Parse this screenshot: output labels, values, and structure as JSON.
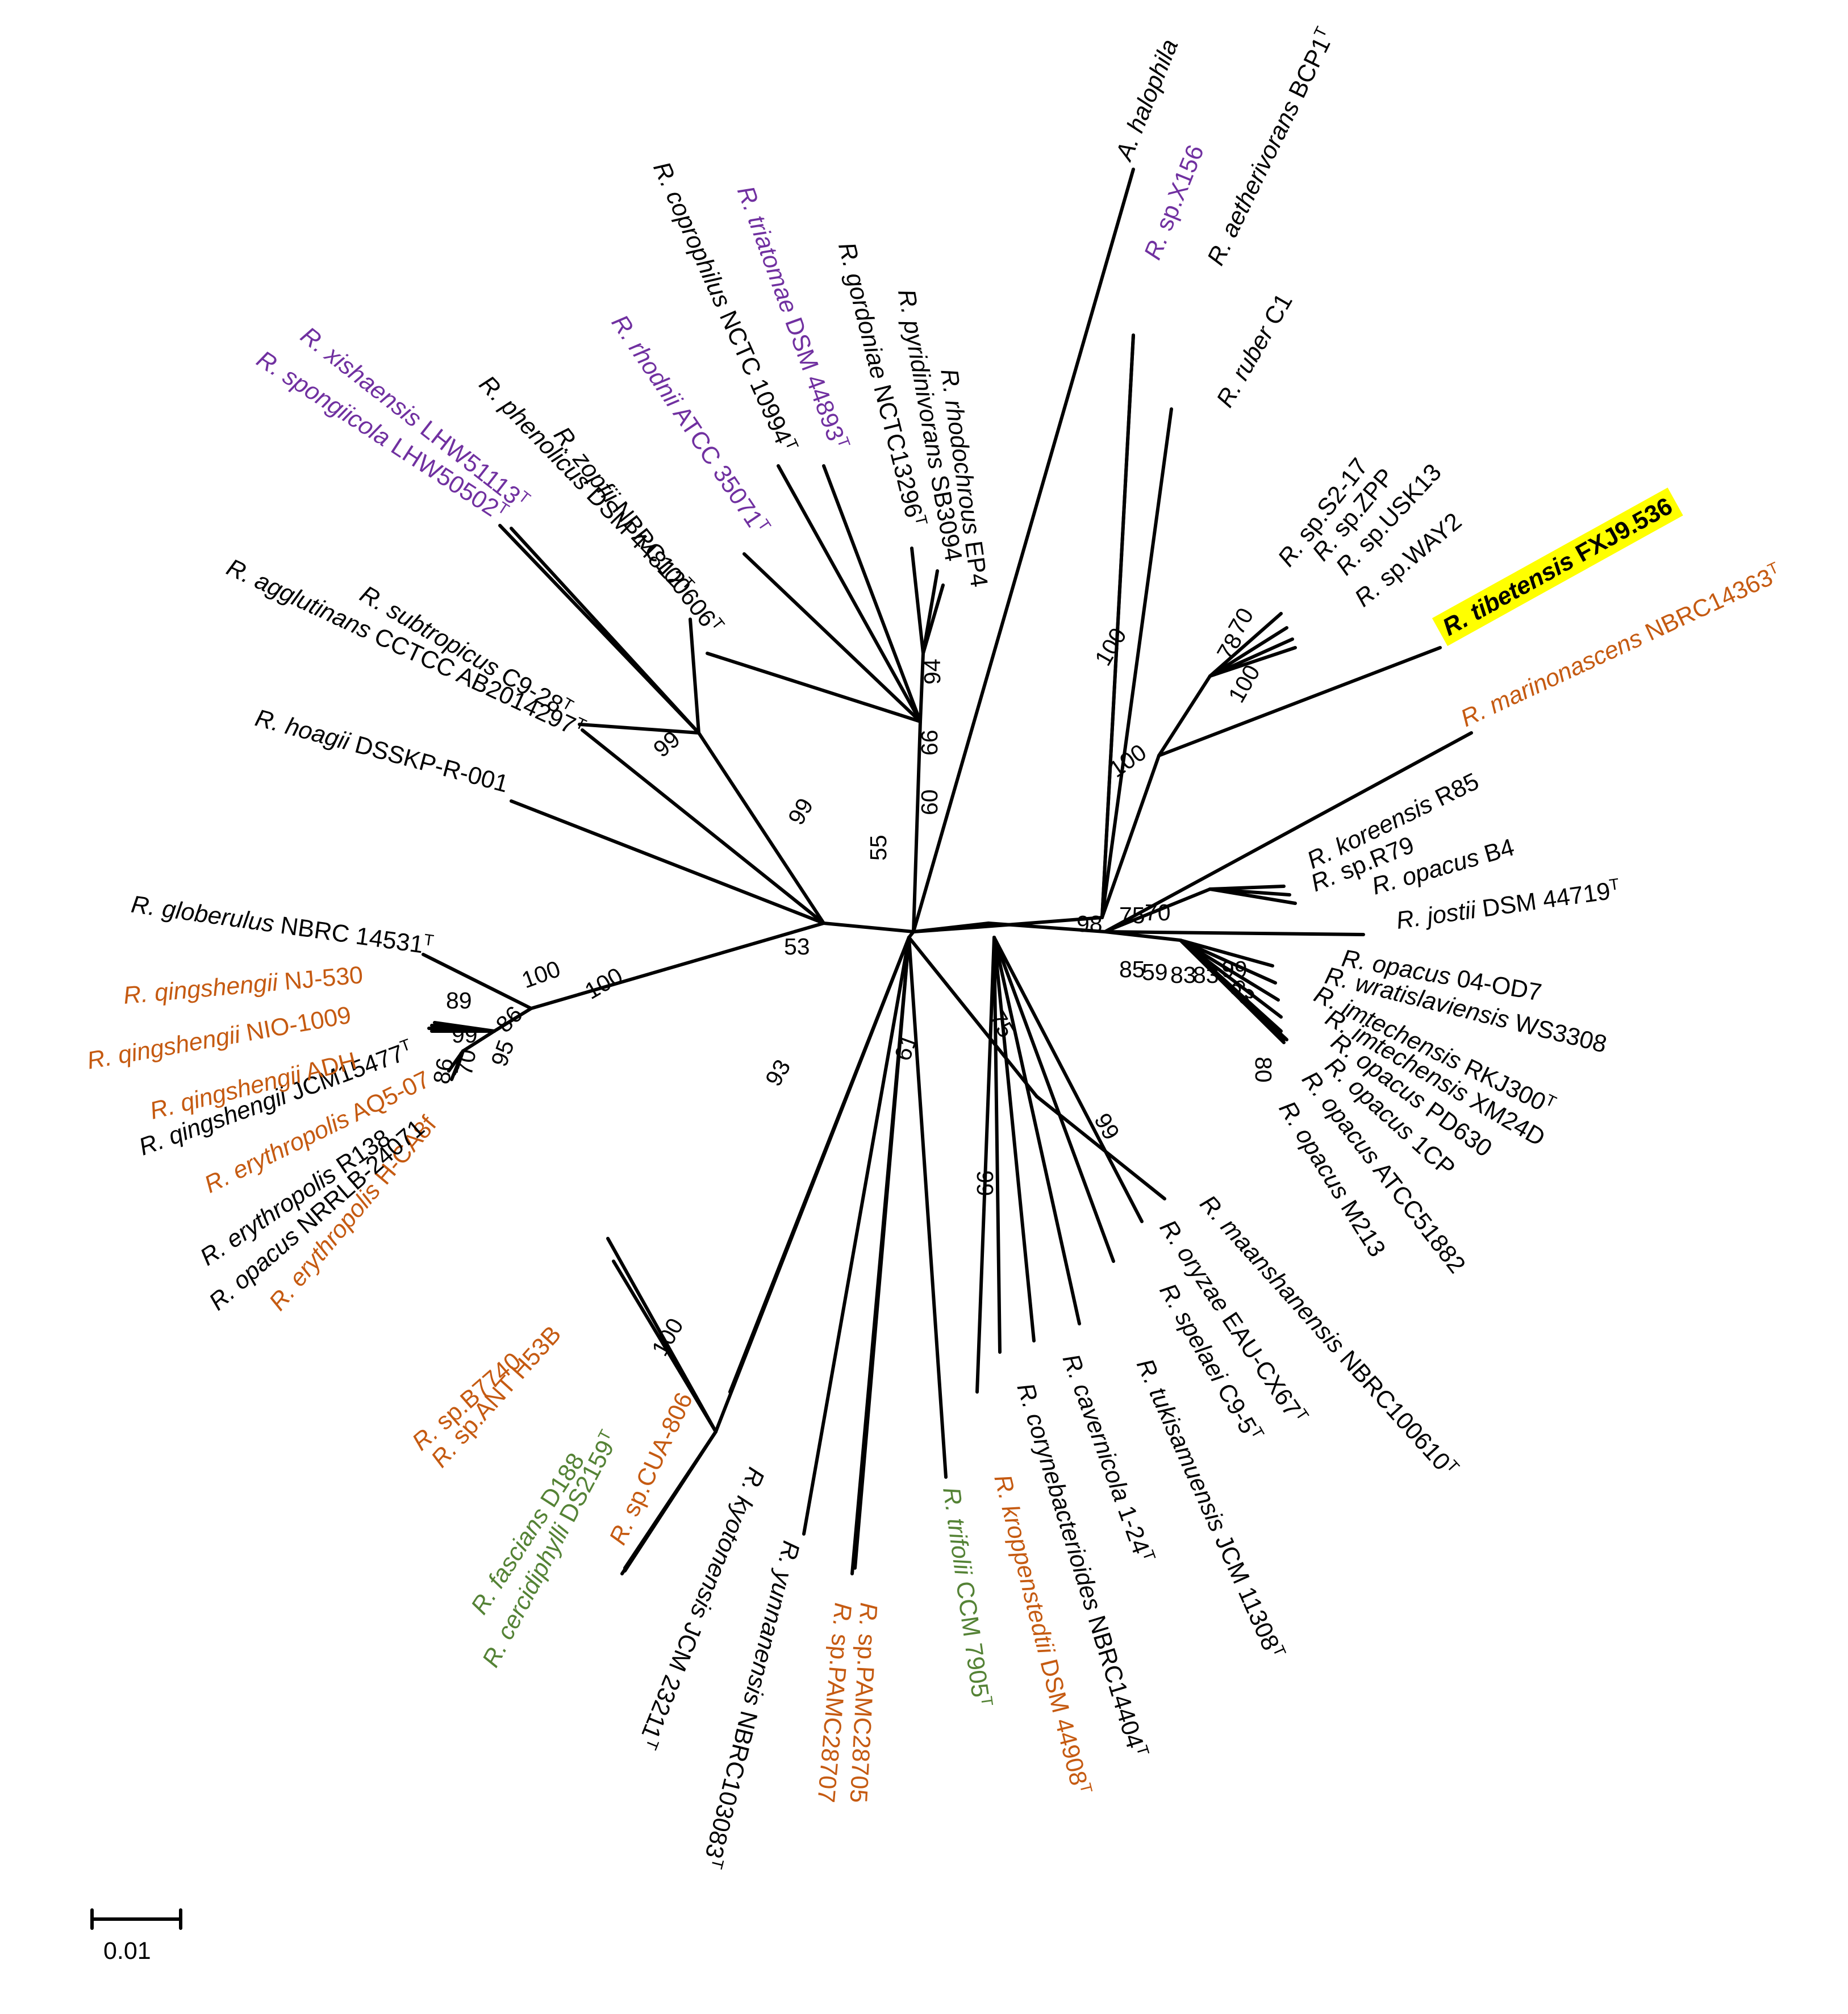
{
  "colors": {
    "black": "#000000",
    "purple": "#7030a0",
    "orange": "#c55a11",
    "green": "#548235",
    "highlight": "#ffff00"
  },
  "tips": [
    {
      "id": "halophila",
      "genus": "A.",
      "species": "halophila",
      "strain": "",
      "sup": "",
      "color": "black",
      "bold": false
    },
    {
      "id": "x156",
      "genus": "R.",
      "species": "",
      "strain": "sp.X156",
      "sup": "",
      "color": "purple",
      "bold": false
    },
    {
      "id": "aetherivorans",
      "genus": "R.",
      "species": "aetherivorans",
      "strain": "BCP1",
      "sup": "T",
      "color": "black",
      "bold": false
    },
    {
      "id": "ruber",
      "genus": "R.",
      "species": "ruber",
      "strain": "C1",
      "sup": "",
      "color": "black",
      "bold": false
    },
    {
      "id": "s217",
      "genus": "R.",
      "species": "",
      "strain": "sp.S2-17",
      "sup": "",
      "color": "black",
      "bold": false
    },
    {
      "id": "zpp",
      "genus": "R.",
      "species": "",
      "strain": "sp.ZPP",
      "sup": "",
      "color": "black",
      "bold": false
    },
    {
      "id": "usk13",
      "genus": "R.",
      "species": "",
      "strain": "sp.USK13",
      "sup": "",
      "color": "black",
      "bold": false
    },
    {
      "id": "way2",
      "genus": "R.",
      "species": "",
      "strain": "sp.WAY2",
      "sup": "",
      "color": "black",
      "bold": false
    },
    {
      "id": "tibetensis",
      "genus": "R.",
      "species": "tibetensis",
      "strain": "FXJ9.536",
      "sup": "",
      "color": "black",
      "bold": true
    },
    {
      "id": "marinonascens",
      "genus": "R.",
      "species": "marinonascens",
      "strain": "NBRC14363",
      "sup": "T",
      "color": "orange",
      "bold": false
    },
    {
      "id": "koreensis",
      "genus": "R.",
      "species": "koreensis",
      "strain": "R85",
      "sup": "",
      "color": "black",
      "bold": false
    },
    {
      "id": "r79",
      "genus": "R.",
      "species": "",
      "strain": "sp.R79",
      "sup": "",
      "color": "black",
      "bold": false
    },
    {
      "id": "opacusB4",
      "genus": "R.",
      "species": "opacus",
      "strain": "B4",
      "sup": "",
      "color": "black",
      "bold": false
    },
    {
      "id": "jostii",
      "genus": "R.",
      "species": "jostii",
      "strain": "DSM 44719",
      "sup": "T",
      "color": "black",
      "bold": false
    },
    {
      "id": "opacus04",
      "genus": "R.",
      "species": "opacus",
      "strain": "04-OD7",
      "sup": "",
      "color": "black",
      "bold": false
    },
    {
      "id": "wratislaviensis",
      "genus": "R.",
      "species": "wratislaviensis",
      "strain": "WS3308",
      "sup": "",
      "color": "black",
      "bold": false
    },
    {
      "id": "imtRKJ",
      "genus": "R.",
      "species": "imtechensis",
      "strain": "RKJ300",
      "sup": "T",
      "color": "black",
      "bold": false
    },
    {
      "id": "imtXM",
      "genus": "R.",
      "species": "imtechensis",
      "strain": "XM24D",
      "sup": "",
      "color": "black",
      "bold": false
    },
    {
      "id": "opacusPD",
      "genus": "R.",
      "species": "opacus",
      "strain": "PD630",
      "sup": "",
      "color": "black",
      "bold": false
    },
    {
      "id": "opacus1CP",
      "genus": "R.",
      "species": "opacus",
      "strain": "1CP",
      "sup": "",
      "color": "black",
      "bold": false
    },
    {
      "id": "opacusATCC",
      "genus": "R.",
      "species": "opacus",
      "strain": "ATCC51882",
      "sup": "",
      "color": "black",
      "bold": false
    },
    {
      "id": "opacusM213",
      "genus": "R.",
      "species": "opacus",
      "strain": "M213",
      "sup": "",
      "color": "black",
      "bold": false
    },
    {
      "id": "maanshanensis",
      "genus": "R.",
      "species": "maanshanensis",
      "strain": "NBRC100610",
      "sup": "T",
      "color": "black",
      "bold": false
    },
    {
      "id": "oryzae",
      "genus": "R.",
      "species": "oryzae",
      "strain": "EAU-CX67",
      "sup": "T",
      "color": "black",
      "bold": false
    },
    {
      "id": "spelaei",
      "genus": "R.",
      "species": "spelaei",
      "strain": "C9-5",
      "sup": "T",
      "color": "black",
      "bold": false
    },
    {
      "id": "tukisamuensis",
      "genus": "R.",
      "species": "tukisamuensis",
      "strain": "JCM 11308",
      "sup": "T",
      "color": "black",
      "bold": false
    },
    {
      "id": "cavernicola",
      "genus": "R.",
      "species": "cavernicola",
      "strain": "1-24",
      "sup": "T",
      "color": "black",
      "bold": false
    },
    {
      "id": "corynebacterioides",
      "genus": "R.",
      "species": "corynebacterioides",
      "strain": "NBRC14404",
      "sup": "T",
      "color": "black",
      "bold": false
    },
    {
      "id": "kroppenstedtii",
      "genus": "R.",
      "species": "kroppenstedtii",
      "strain": "DSM 44908",
      "sup": "T",
      "color": "orange",
      "bold": false
    },
    {
      "id": "trifolii",
      "genus": "R.",
      "species": "trifolii",
      "strain": "CCM 7905",
      "sup": "T",
      "color": "green",
      "bold": false
    },
    {
      "id": "pamc28705",
      "genus": "R.",
      "species": "",
      "strain": "sp.PAMC28705",
      "sup": "",
      "color": "orange",
      "bold": false
    },
    {
      "id": "pamc28707",
      "genus": "R.",
      "species": "",
      "strain": "sp.PAMC28707",
      "sup": "",
      "color": "orange",
      "bold": false
    },
    {
      "id": "yunnanensis",
      "genus": "R.",
      "species": "yunnanensis",
      "strain": "NBRC103083",
      "sup": "T",
      "color": "black",
      "bold": false
    },
    {
      "id": "kyotonensis",
      "genus": "R.",
      "species": "kyotonensis",
      "strain": "JCM 23211",
      "sup": "T",
      "color": "black",
      "bold": false
    },
    {
      "id": "cua806",
      "genus": "R.",
      "species": "",
      "strain": "sp.CUA-806",
      "sup": "",
      "color": "orange",
      "bold": false
    },
    {
      "id": "cercidiphylli",
      "genus": "R.",
      "species": "cercidiphylli",
      "strain": "DS2159",
      "sup": "T",
      "color": "green",
      "bold": false
    },
    {
      "id": "fascians",
      "genus": "R.",
      "species": "fascians",
      "strain": "D188",
      "sup": "",
      "color": "green",
      "bold": false
    },
    {
      "id": "anth53b",
      "genus": "R.",
      "species": "",
      "strain": "sp.ANT H53B",
      "sup": "",
      "color": "orange",
      "bold": false
    },
    {
      "id": "b7740",
      "genus": "R.",
      "species": "",
      "strain": "sp.B7740",
      "sup": "",
      "color": "orange",
      "bold": false
    },
    {
      "id": "erythroHCA8f",
      "genus": "R.",
      "species": "erythropolis",
      "strain": "H-CA8f",
      "sup": "",
      "color": "orange",
      "bold": false
    },
    {
      "id": "opacusNRRL",
      "genus": "R.",
      "species": "opacus",
      "strain": "NRRLB-24071",
      "sup": "",
      "color": "black",
      "bold": false
    },
    {
      "id": "erythroR138",
      "genus": "R.",
      "species": "erythropolis",
      "strain": "R138",
      "sup": "",
      "color": "black",
      "bold": false
    },
    {
      "id": "erythroAQ5",
      "genus": "R.",
      "species": "erythropolis",
      "strain": "AQ5-07",
      "sup": "",
      "color": "orange",
      "bold": false
    },
    {
      "id": "qingJCM",
      "genus": "R.",
      "species": "qingshengii",
      "strain": "JCM15477",
      "sup": "T",
      "color": "black",
      "bold": false
    },
    {
      "id": "qingADH",
      "genus": "R.",
      "species": "qingshengii",
      "strain": "ADH",
      "sup": "",
      "color": "orange",
      "bold": false
    },
    {
      "id": "qingNIO",
      "genus": "R.",
      "species": "qingshengii",
      "strain": "NIO-1009",
      "sup": "",
      "color": "orange",
      "bold": false
    },
    {
      "id": "qingNJ",
      "genus": "R.",
      "species": "qingshengii",
      "strain": "NJ-530",
      "sup": "",
      "color": "orange",
      "bold": false
    },
    {
      "id": "globerulus",
      "genus": "R.",
      "species": "globerulus",
      "strain": "NBRC 14531",
      "sup": "T",
      "color": "black",
      "bold": false
    },
    {
      "id": "hoagii",
      "genus": "R.",
      "species": "hoagii",
      "strain": "DSSKP-R-001",
      "sup": "",
      "color": "black",
      "bold": false
    },
    {
      "id": "agglutinans",
      "genus": "R.",
      "species": "agglutinans",
      "strain": "CCTCC AB2014297",
      "sup": "T",
      "color": "black",
      "bold": false
    },
    {
      "id": "subtropicus",
      "genus": "R.",
      "species": "subtropicus",
      "strain": "C9-28",
      "sup": "T",
      "color": "black",
      "bold": false
    },
    {
      "id": "spongiicola",
      "genus": "R.",
      "species": "spongiicola",
      "strain": "LHW50502",
      "sup": "T",
      "color": "purple",
      "bold": false
    },
    {
      "id": "xishaensis",
      "genus": "R.",
      "species": "xishaensis",
      "strain": "LHW51113",
      "sup": "T",
      "color": "purple",
      "bold": false
    },
    {
      "id": "phenolicus",
      "genus": "R.",
      "species": "phenolicus",
      "strain": "DSM 44812",
      "sup": "T",
      "color": "black",
      "bold": false
    },
    {
      "id": "zopfii",
      "genus": "R.",
      "species": "zopfii",
      "strain": "NBRC100606",
      "sup": "T",
      "color": "black",
      "bold": false
    },
    {
      "id": "rhodnii",
      "genus": "R.",
      "species": "rhodnii",
      "strain": "ATCC 35071",
      "sup": "T",
      "color": "purple",
      "bold": false
    },
    {
      "id": "coprophilus",
      "genus": "R.",
      "species": "coprophilus",
      "strain": "NCTC 10994",
      "sup": "T",
      "color": "black",
      "bold": false
    },
    {
      "id": "triatomae",
      "genus": "R.",
      "species": "triatomae",
      "strain": "DSM 44893",
      "sup": "T",
      "color": "purple",
      "bold": false
    },
    {
      "id": "gordoniae",
      "genus": "R.",
      "species": "gordoniae",
      "strain": "NCTC13296",
      "sup": "T",
      "color": "black",
      "bold": false
    },
    {
      "id": "pyridinivorans",
      "genus": "R.",
      "species": "pyridinivorans",
      "strain": "SB3094",
      "sup": "",
      "color": "black",
      "bold": false
    },
    {
      "id": "rhodochrous",
      "genus": "R.",
      "species": "rhodochrous",
      "strain": "EP4",
      "sup": "",
      "color": "black",
      "bold": false
    }
  ],
  "bootstrap": [
    "100",
    "78",
    "70",
    "100",
    "100",
    "98",
    "75",
    "70",
    "99",
    "85",
    "59",
    "83",
    "83",
    "63",
    "80",
    "75",
    "99",
    "99",
    "61",
    "93",
    "100",
    "100",
    "53",
    "55",
    "60",
    "66",
    "94",
    "99",
    "99",
    "100",
    "89",
    "99",
    "86",
    "86",
    "70",
    "95"
  ],
  "scale_bar": {
    "value": "0.01"
  }
}
